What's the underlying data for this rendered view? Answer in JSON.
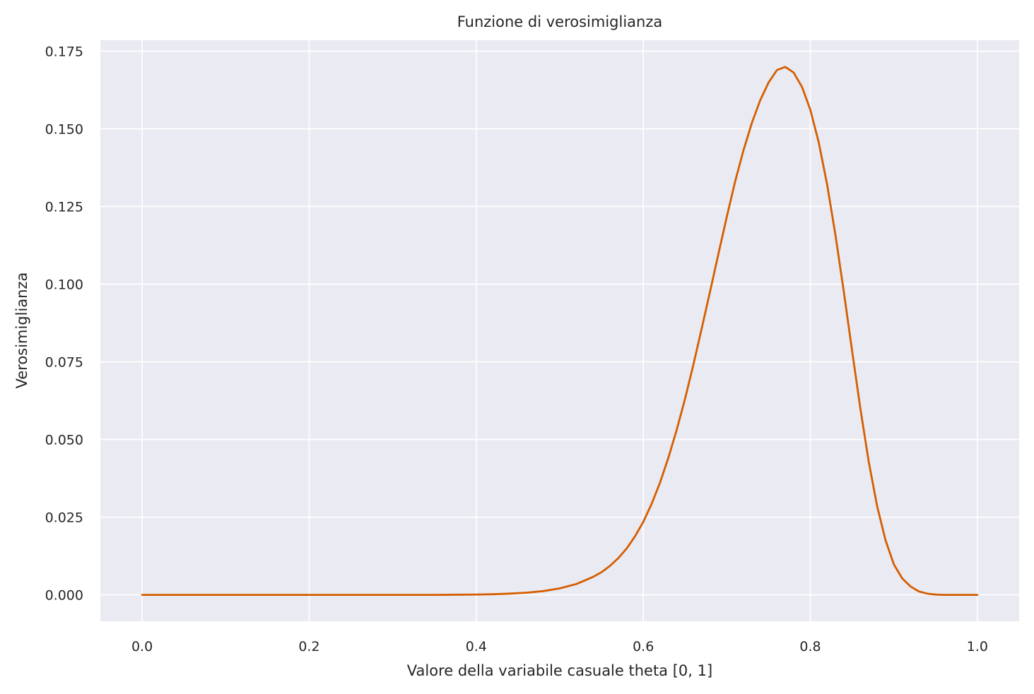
{
  "chart_data": {
    "type": "line",
    "title": "Funzione di verosimiglianza",
    "xlabel": "Valore della variabile casuale theta [0, 1]",
    "ylabel": "Verosimiglianza",
    "xlim": [
      -0.05,
      1.05
    ],
    "ylim": [
      -0.0085,
      0.1785
    ],
    "xticks": [
      0.0,
      0.2,
      0.4,
      0.6,
      0.8,
      1.0
    ],
    "xtick_labels": [
      "0.0",
      "0.2",
      "0.4",
      "0.6",
      "0.8",
      "1.0"
    ],
    "yticks": [
      0.0,
      0.025,
      0.05,
      0.075,
      0.1,
      0.125,
      0.15,
      0.175
    ],
    "ytick_labels": [
      "0.000",
      "0.025",
      "0.050",
      "0.075",
      "0.100",
      "0.125",
      "0.150",
      "0.175"
    ],
    "grid": true,
    "series": [
      {
        "color": "#d55e00",
        "x": [
          0.0,
          0.05,
          0.1,
          0.15,
          0.2,
          0.25,
          0.3,
          0.35,
          0.4,
          0.42,
          0.44,
          0.46,
          0.48,
          0.5,
          0.52,
          0.54,
          0.55,
          0.56,
          0.57,
          0.58,
          0.59,
          0.6,
          0.61,
          0.62,
          0.63,
          0.64,
          0.65,
          0.66,
          0.67,
          0.68,
          0.69,
          0.7,
          0.71,
          0.72,
          0.73,
          0.74,
          0.75,
          0.76,
          0.77,
          0.78,
          0.79,
          0.8,
          0.81,
          0.82,
          0.83,
          0.84,
          0.85,
          0.86,
          0.87,
          0.88,
          0.89,
          0.9,
          0.91,
          0.92,
          0.93,
          0.94,
          0.95,
          0.96,
          0.97,
          0.98,
          0.99,
          1.0
        ],
        "y": [
          0.0,
          0.0,
          0.0,
          0.0,
          0.0,
          0.0,
          0.0,
          0.0,
          0.0001,
          0.0002,
          0.0004,
          0.0007,
          0.0012,
          0.0021,
          0.0035,
          0.0058,
          0.0073,
          0.0093,
          0.0118,
          0.0149,
          0.0188,
          0.0235,
          0.0293,
          0.0361,
          0.0441,
          0.0531,
          0.0631,
          0.0741,
          0.0858,
          0.0977,
          0.1098,
          0.1217,
          0.1331,
          0.1431,
          0.1519,
          0.1592,
          0.1649,
          0.1689,
          0.1699,
          0.1681,
          0.1635,
          0.1561,
          0.1457,
          0.1322,
          0.1159,
          0.0977,
          0.0785,
          0.0598,
          0.0427,
          0.0285,
          0.0176,
          0.0098,
          0.0053,
          0.0027,
          0.0011,
          0.0004,
          0.0001,
          0.0,
          0.0,
          0.0,
          0.0,
          0.0
        ]
      }
    ]
  }
}
